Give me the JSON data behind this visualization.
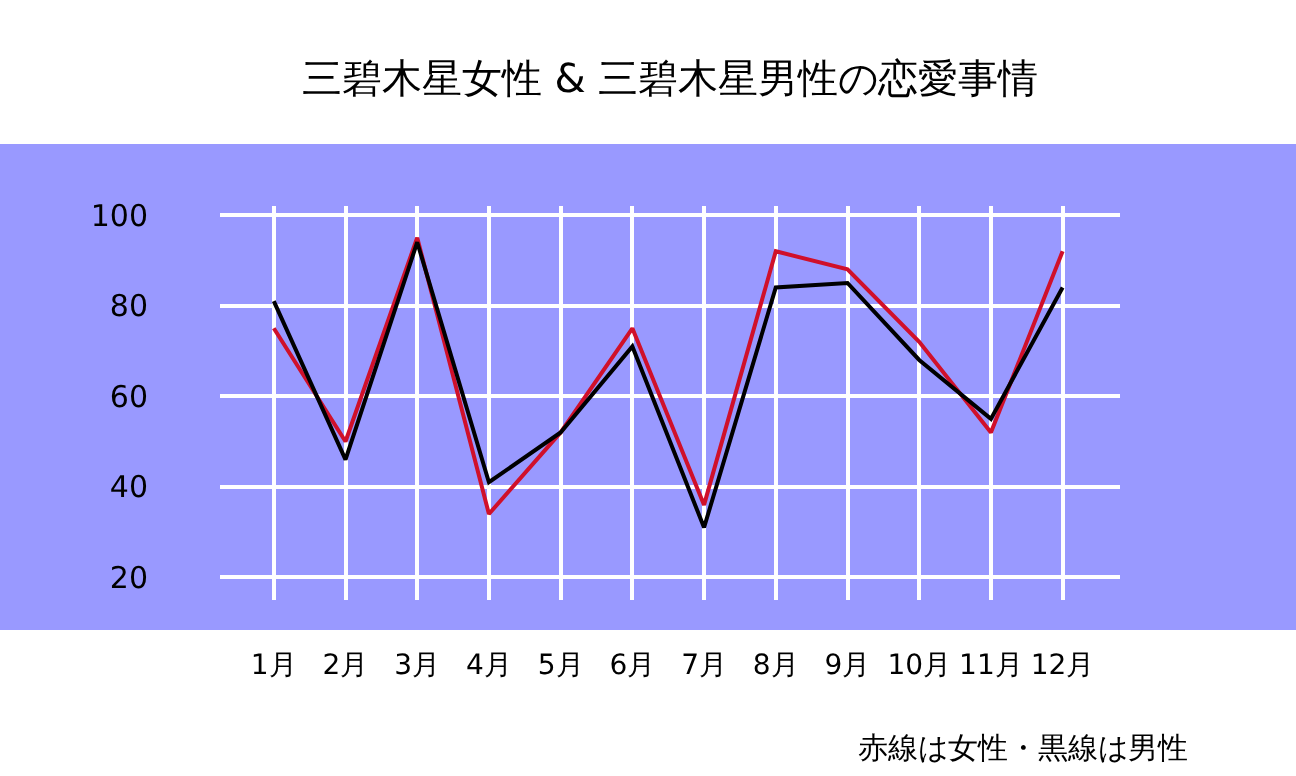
{
  "chart_data": {
    "type": "line",
    "title": "三碧木星女性 & 三碧木星男性の恋愛事情",
    "categories": [
      "1月",
      "2月",
      "3月",
      "4月",
      "5月",
      "6月",
      "7月",
      "8月",
      "9月",
      "10月",
      "11月",
      "12月"
    ],
    "series": [
      {
        "color": "#d0102a",
        "values": [
          75,
          50,
          95,
          34,
          52,
          75,
          36,
          92,
          88,
          72,
          52,
          92
        ]
      },
      {
        "color": "#000000",
        "values": [
          81,
          46,
          94,
          41,
          52,
          71,
          31,
          84,
          85,
          68,
          55,
          84
        ]
      }
    ],
    "ylim": [
      15,
      102
    ],
    "yticks": [
      20,
      40,
      60,
      80,
      100
    ],
    "grid": true,
    "legend": false,
    "marker": "none",
    "line_style": "solid",
    "annotations": [
      "赤線は女性・黒線は男性"
    ]
  }
}
